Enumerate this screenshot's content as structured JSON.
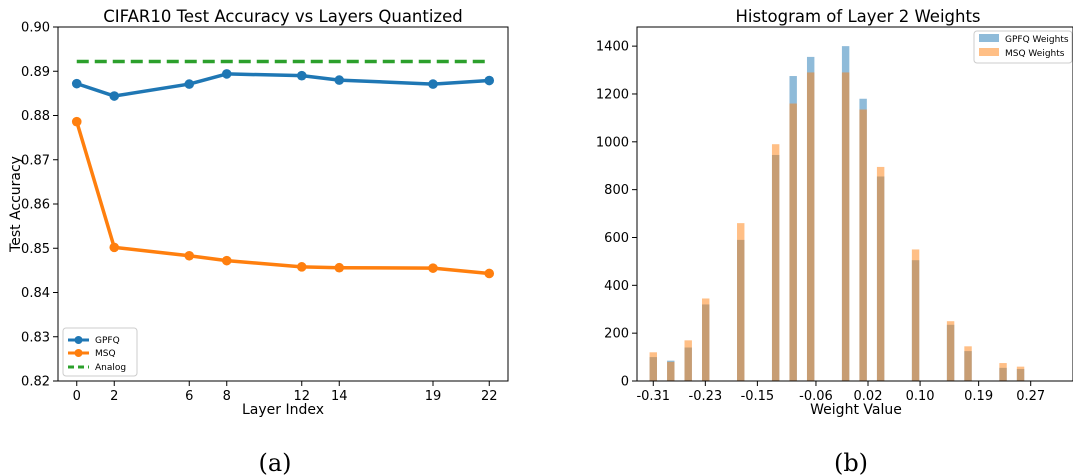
{
  "colors": {
    "blue": "#1f77b4",
    "orange": "#ff7f0e",
    "green": "#2ca02c"
  },
  "chart_data": [
    {
      "type": "line",
      "title": "CIFAR10 Test Accuracy vs Layers Quantized",
      "xlabel": "Layer Index",
      "ylabel": "Test Accuracy",
      "xlim": [
        -1,
        23
      ],
      "ylim": [
        0.82,
        0.9
      ],
      "xticks": [
        0,
        2,
        6,
        8,
        12,
        14,
        19,
        22
      ],
      "yticks": [
        0.82,
        0.83,
        0.84,
        0.85,
        0.86,
        0.87,
        0.88,
        0.89,
        0.9
      ],
      "ytick_labels": [
        "0.82",
        "0.83",
        "0.84",
        "0.85",
        "0.86",
        "0.87",
        "0.88",
        "0.89",
        "0.90"
      ],
      "grid": false,
      "legend_position": "bottom-left",
      "x": [
        0,
        2,
        6,
        8,
        12,
        14,
        19,
        22
      ],
      "series": [
        {
          "name": "GPFQ",
          "color": "#1f77b4",
          "style": "solid-marker",
          "values": [
            0.8872,
            0.8844,
            0.8871,
            0.8894,
            0.889,
            0.888,
            0.8871,
            0.8879
          ]
        },
        {
          "name": "MSQ",
          "color": "#ff7f0e",
          "style": "solid-marker",
          "values": [
            0.8786,
            0.8502,
            0.8483,
            0.8472,
            0.8458,
            0.8456,
            0.8455,
            0.8443
          ]
        },
        {
          "name": "Analog",
          "color": "#2ca02c",
          "style": "dashed",
          "values": [
            0.8922,
            0.8922,
            0.8922,
            0.8922,
            0.8922,
            0.8922,
            0.8922,
            0.8922
          ]
        }
      ],
      "caption": "(a)"
    },
    {
      "type": "bar",
      "subtype": "histogram-overlay",
      "title": "Histogram of Layer 2 Weights",
      "xlabel": "Weight Value",
      "ylabel": "",
      "xlim": [
        -0.335,
        0.335
      ],
      "ylim": [
        0,
        1480
      ],
      "xticks": [
        -0.31,
        -0.23,
        -0.15,
        -0.06,
        0.02,
        0.1,
        0.19,
        0.27
      ],
      "xtick_labels": [
        "-0.31",
        "-0.23",
        "-0.15",
        "-0.06",
        "0.02",
        "0.10",
        "0.19",
        "0.27"
      ],
      "yticks": [
        0,
        200,
        400,
        600,
        800,
        1000,
        1200,
        1400
      ],
      "grid": false,
      "legend_position": "top-right",
      "bin_centers": [
        -0.31,
        -0.2831,
        -0.2563,
        -0.2294,
        -0.2025,
        -0.1756,
        -0.1488,
        -0.1219,
        -0.095,
        -0.0681,
        -0.0413,
        -0.0144,
        0.0125,
        0.0394,
        0.0662,
        0.0931,
        0.12,
        0.1469,
        0.1737,
        0.2006,
        0.2275,
        0.2544,
        0.2812,
        0.3081
      ],
      "bin_width": 0.0114,
      "series": [
        {
          "name": "GPFQ Weights",
          "color": "#1f77b4",
          "values": [
            100,
            85,
            140,
            320,
            0,
            590,
            0,
            945,
            1275,
            1355,
            0,
            1400,
            1180,
            855,
            0,
            505,
            0,
            235,
            125,
            0,
            55,
            50,
            0,
            0
          ]
        },
        {
          "name": "MSQ Weights",
          "color": "#ff7f0e",
          "values": [
            120,
            80,
            170,
            345,
            0,
            660,
            0,
            990,
            1160,
            1290,
            0,
            1290,
            1135,
            895,
            0,
            550,
            0,
            250,
            145,
            0,
            75,
            60,
            0,
            0
          ]
        }
      ],
      "caption": "(b)"
    }
  ]
}
